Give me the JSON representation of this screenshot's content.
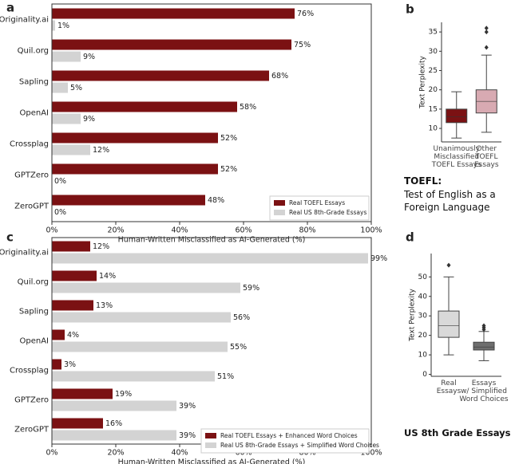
{
  "chart_data": [
    {
      "type": "barh",
      "panel_label": "a",
      "categories": [
        "Originality.ai",
        "Quil.org",
        "Sapling",
        "OpenAI",
        "Crossplag",
        "GPTZero",
        "ZeroGPT"
      ],
      "series": [
        {
          "name": "Real TOEFL Essays",
          "color": "#7b1113",
          "values": [
            76,
            75,
            68,
            58,
            52,
            52,
            48
          ],
          "value_labels": [
            "76%",
            "75%",
            "68%",
            "58%",
            "52%",
            "52%",
            "48%"
          ]
        },
        {
          "name": "Real US 8th-Grade Essays",
          "color": "#d3d3d3",
          "values": [
            1,
            9,
            5,
            9,
            12,
            0,
            0
          ],
          "value_labels": [
            "1%",
            "9%",
            "5%",
            "9%",
            "12%",
            "0%",
            "0%"
          ]
        }
      ],
      "xlim": [
        0,
        100
      ],
      "xticks": [
        {
          "value": 0,
          "label": "0%"
        },
        {
          "value": 20,
          "label": "20%"
        },
        {
          "value": 40,
          "label": "40%"
        },
        {
          "value": 60,
          "label": "60%"
        },
        {
          "value": 80,
          "label": "80%"
        },
        {
          "value": 100,
          "label": "100%"
        }
      ],
      "xlabel": "Human-Written Misclassified as AI-Generated (%)",
      "legend": "lower right"
    },
    {
      "type": "box",
      "panel_label": "b",
      "categories": [
        "Unanimously\nMisclassified\nTOEFL Essays",
        "Other\nTOEFL\nEssays"
      ],
      "colors": [
        "#7b1113",
        "#d8aab2"
      ],
      "boxes": [
        {
          "whislo": 7.5,
          "q1": 11.5,
          "med": 13,
          "q3": 15,
          "whishi": 19.5,
          "fliers": []
        },
        {
          "whislo": 9,
          "q1": 14,
          "med": 17,
          "q3": 20,
          "whishi": 29,
          "fliers": [
            31,
            35,
            36
          ]
        }
      ],
      "ylim": [
        6.5,
        37.5
      ],
      "yticks": [
        10,
        15,
        20,
        25,
        30,
        35
      ],
      "ylabel": "Text Perplexity",
      "caption_title": "TOEFL:",
      "caption": "Test of English as a Foreign Language"
    },
    {
      "type": "barh",
      "panel_label": "c",
      "categories": [
        "Originality.ai",
        "Quil.org",
        "Sapling",
        "OpenAI",
        "Crossplag",
        "GPTZero",
        "ZeroGPT"
      ],
      "series": [
        {
          "name": "Real TOEFL Essays + Enhanced Word Choices",
          "color": "#7b1113",
          "values": [
            12,
            14,
            13,
            4,
            3,
            19,
            16
          ],
          "value_labels": [
            "12%",
            "14%",
            "13%",
            "4%",
            "3%",
            "19%",
            "16%"
          ]
        },
        {
          "name": "Real US 8th-Grade Essays + Simplified Word Choices",
          "color": "#d3d3d3",
          "values": [
            99,
            59,
            56,
            55,
            51,
            39,
            39
          ],
          "value_labels": [
            "99%",
            "59%",
            "56%",
            "55%",
            "51%",
            "39%",
            "39%"
          ]
        }
      ],
      "xlim": [
        0,
        100
      ],
      "xticks": [
        {
          "value": 0,
          "label": "0%"
        },
        {
          "value": 20,
          "label": "20%"
        },
        {
          "value": 40,
          "label": "40%"
        },
        {
          "value": 60,
          "label": "60%"
        },
        {
          "value": 80,
          "label": "80%"
        },
        {
          "value": 100,
          "label": "100%"
        }
      ],
      "xlabel": "Human-Written Misclassified as AI-Generated (%)",
      "legend": "lower right"
    },
    {
      "type": "box",
      "panel_label": "d",
      "categories": [
        "Real\nEssays",
        "Essays\nw/ Simplified\nWord Choices"
      ],
      "colors": [
        "#d9d9d9",
        "#6e6e6e"
      ],
      "boxes": [
        {
          "whislo": 10,
          "q1": 19,
          "med": 25,
          "q3": 32.5,
          "whishi": 50,
          "fliers": [
            56
          ]
        },
        {
          "whislo": 7,
          "q1": 12.5,
          "med": 14,
          "q3": 16.5,
          "whishi": 22,
          "fliers": [
            23,
            24,
            25
          ]
        }
      ],
      "ylim": [
        -1,
        62
      ],
      "yticks": [
        0,
        10,
        20,
        30,
        40,
        50
      ],
      "ylabel": "Text Perplexity",
      "caption_title": "US 8th Grade Essays"
    }
  ]
}
